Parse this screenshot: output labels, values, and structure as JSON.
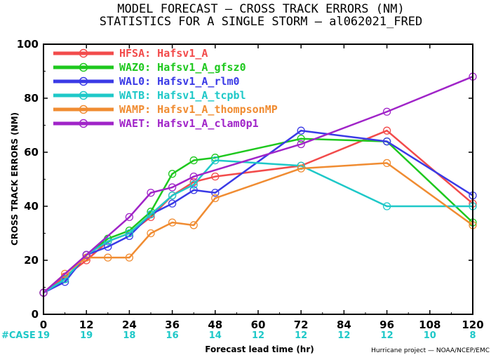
{
  "chart_data": {
    "type": "line",
    "title": "MODEL FORECAST — CROSS TRACK ERRORS (NM)",
    "subtitle": "STATISTICS FOR A SINGLE STORM — al062021_FRED",
    "xlabel": "Forecast lead time (hr)",
    "ylabel": "CROSS TRACK ERRORS (NM)",
    "xlim": [
      0,
      120
    ],
    "ylim": [
      0,
      100
    ],
    "x_ticks": [
      0,
      12,
      24,
      36,
      48,
      60,
      72,
      84,
      96,
      108,
      120
    ],
    "y_ticks": [
      0,
      20,
      40,
      60,
      80,
      100
    ],
    "grid": false,
    "legend_position": "top-left",
    "case_label": "#CASE",
    "cases": [
      {
        "x": 0,
        "n": "19"
      },
      {
        "x": 12,
        "n": "19"
      },
      {
        "x": 24,
        "n": "18"
      },
      {
        "x": 36,
        "n": "16"
      },
      {
        "x": 48,
        "n": "14"
      },
      {
        "x": 60,
        "n": "12"
      },
      {
        "x": 72,
        "n": "12"
      },
      {
        "x": 84,
        "n": "12"
      },
      {
        "x": 96,
        "n": "12"
      },
      {
        "x": 108,
        "n": "10"
      },
      {
        "x": 120,
        "n": "8"
      }
    ],
    "credit": "Hurricane project — NOAA/NCEP/EMC",
    "series": [
      {
        "name": "HFSA:  Hafsv1_A",
        "color": "#f24b4b",
        "x": [
          0,
          6,
          12,
          18,
          24,
          30,
          36,
          42,
          48,
          72,
          96,
          120
        ],
        "y": [
          8,
          14,
          20,
          27,
          30,
          36,
          44,
          49,
          51,
          55,
          68,
          41
        ]
      },
      {
        "name": "WAZ0:  Hafsv1_A_gfsz0",
        "color": "#1ec81e",
        "x": [
          0,
          6,
          12,
          18,
          24,
          30,
          36,
          42,
          48,
          72,
          96,
          120
        ],
        "y": [
          8,
          13,
          22,
          28,
          31,
          38,
          52,
          57,
          58,
          65,
          64,
          34
        ]
      },
      {
        "name": "WAL0:  Hafsv1_A_rlm0",
        "color": "#3a3ae6",
        "x": [
          0,
          6,
          12,
          18,
          24,
          30,
          36,
          42,
          48,
          72,
          96,
          120
        ],
        "y": [
          8,
          12,
          22,
          25,
          29,
          37,
          41,
          46,
          45,
          68,
          64,
          44
        ]
      },
      {
        "name": "WATB:  Hafsv1_A_tcpbl",
        "color": "#1ec8c8",
        "x": [
          0,
          6,
          12,
          18,
          24,
          30,
          36,
          42,
          48,
          72,
          96,
          120
        ],
        "y": [
          8,
          13,
          22,
          27,
          30,
          37,
          44,
          48,
          57,
          55,
          40,
          40
        ]
      },
      {
        "name": "WAMP:  Hafsv1_A_thompsonMP",
        "color": "#f08c32",
        "x": [
          0,
          6,
          12,
          18,
          24,
          30,
          36,
          42,
          48,
          72,
          96,
          120
        ],
        "y": [
          8,
          15,
          21,
          21,
          21,
          30,
          34,
          33,
          43,
          54,
          56,
          33
        ]
      },
      {
        "name": "WAET:  Hafsv1_A_clam0p1",
        "color": "#a024c8",
        "x": [
          0,
          12,
          24,
          30,
          36,
          42,
          72,
          96,
          120
        ],
        "y": [
          8,
          22,
          36,
          45,
          47,
          51,
          63,
          75,
          88
        ]
      }
    ]
  }
}
